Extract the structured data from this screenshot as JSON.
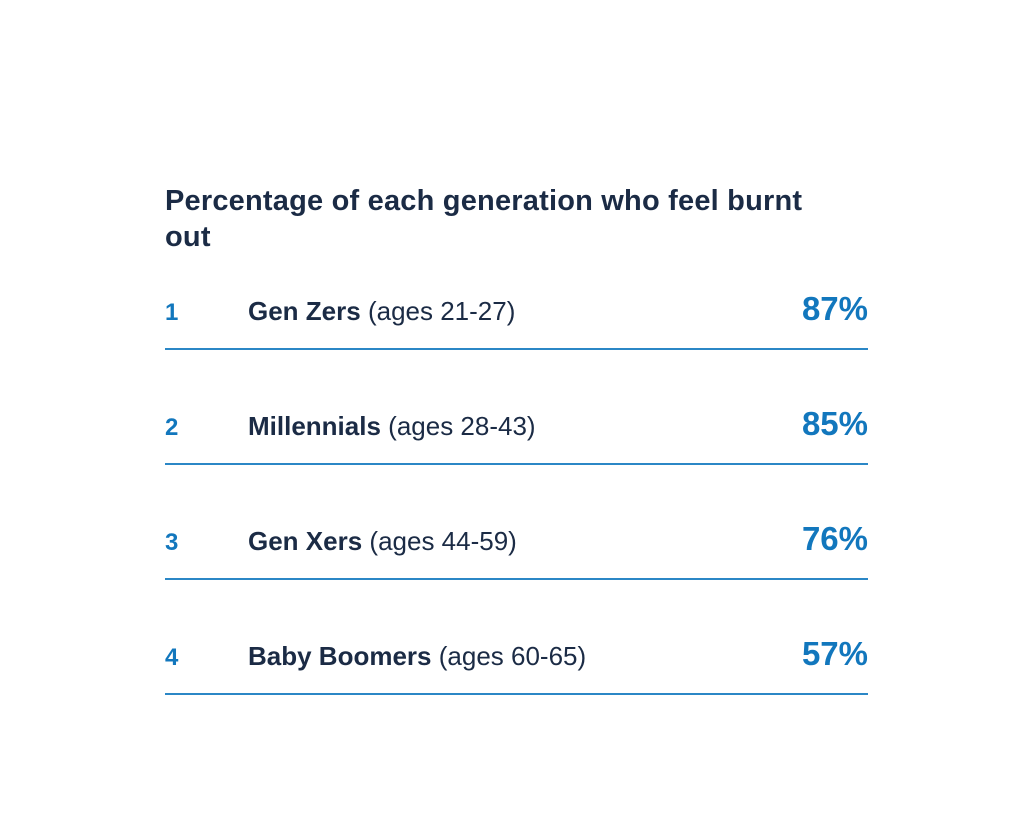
{
  "chart_data": {
    "type": "table",
    "title": "Percentage of each generation who feel burnt out",
    "categories": [
      "Gen Zers",
      "Millennials",
      "Gen Xers",
      "Baby Boomers"
    ],
    "age_ranges": [
      "ages 21-27",
      "ages 28-43",
      "ages 44-59",
      "ages 60-65"
    ],
    "values": [
      87,
      85,
      76,
      57
    ],
    "ranks": [
      1,
      2,
      3,
      4
    ],
    "value_unit": "%",
    "legend_position": "none",
    "grid": false
  },
  "title": "Percentage of each generation who feel burnt out",
  "rows": [
    {
      "rank": "1",
      "name": "Gen Zers",
      "ages": "(ages 21-27)",
      "value": "87%"
    },
    {
      "rank": "2",
      "name": "Millennials",
      "ages": "(ages 28-43)",
      "value": "85%"
    },
    {
      "rank": "3",
      "name": "Gen Xers",
      "ages": "(ages 44-59)",
      "value": "76%"
    },
    {
      "rank": "4",
      "name": "Baby Boomers",
      "ages": "(ages 60-65)",
      "value": "57%"
    }
  ],
  "colors": {
    "text_navy": "#1b2b45",
    "accent_blue": "#1277bd",
    "rule_blue": "#2b87c6",
    "background": "#ffffff"
  }
}
